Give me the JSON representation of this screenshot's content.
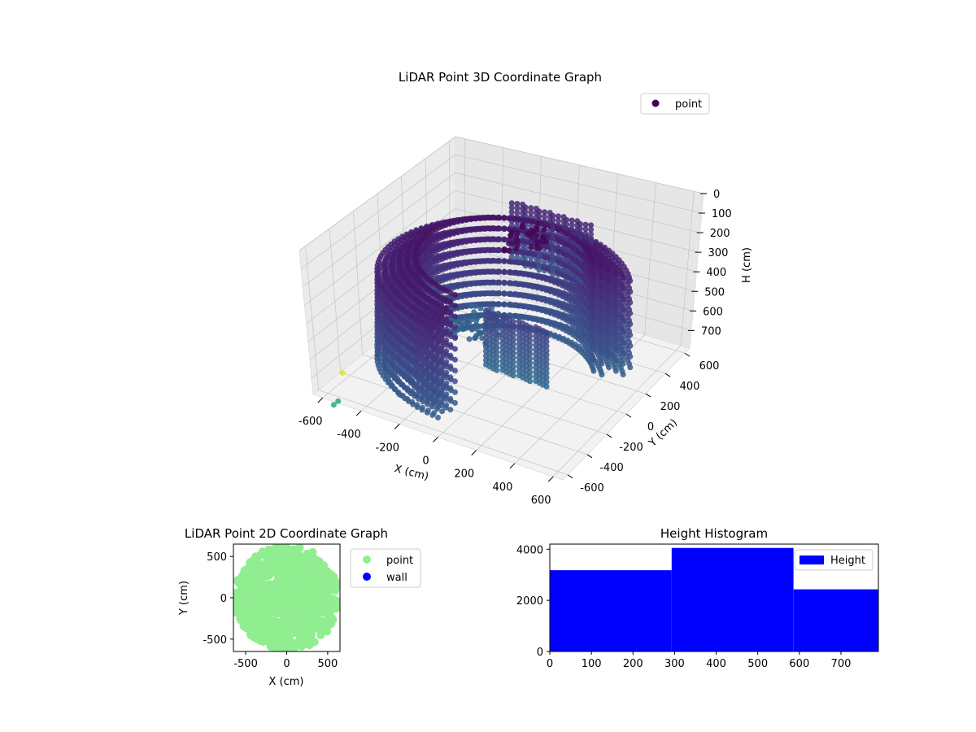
{
  "chart_data": [
    {
      "type": "scatter",
      "projection": "3d",
      "title": "LiDAR Point 3D Coordinate Graph",
      "xlabel": "X (cm)",
      "ylabel": "Y (cm)",
      "zlabel": "H (cm)",
      "xlim": [
        -650,
        650
      ],
      "ylim": [
        -650,
        650
      ],
      "zlim": [
        790,
        0
      ],
      "z_inverted": true,
      "xticks": [
        -600,
        -400,
        -200,
        0,
        200,
        400,
        600
      ],
      "yticks": [
        -600,
        -400,
        -200,
        0,
        200,
        400,
        600
      ],
      "zticks": [
        0,
        100,
        200,
        300,
        400,
        500,
        600,
        700
      ],
      "colormap": "viridis",
      "legend": {
        "placement": "upper-right",
        "entries": [
          {
            "name": "point",
            "color": "#440154"
          }
        ]
      },
      "grid": true,
      "series": [
        {
          "name": "point",
          "points": []
        }
      ]
    },
    {
      "type": "scatter",
      "title": "LiDAR Point 2D Coordinate Graph",
      "xlabel": "X (cm)",
      "ylabel": "Y (cm)",
      "xlim": [
        -650,
        650
      ],
      "ylim": [
        -650,
        650
      ],
      "xticks": [
        -500,
        0,
        500
      ],
      "yticks": [
        -500,
        0,
        500
      ],
      "grid": false,
      "legend": {
        "placement": "outside-right",
        "entries": [
          {
            "name": "point",
            "color": "#90ee90"
          },
          {
            "name": "wall",
            "color": "#0000ff"
          }
        ]
      },
      "series": [
        {
          "name": "point",
          "color": "#90ee90"
        },
        {
          "name": "wall",
          "color": "#0000ff"
        }
      ]
    },
    {
      "type": "bar",
      "title": "Height Histogram",
      "xlim": [
        0,
        790
      ],
      "ylim": [
        0,
        4200
      ],
      "xticks": [
        0,
        100,
        200,
        300,
        400,
        500,
        600,
        700
      ],
      "yticks": [
        0,
        2000,
        4000
      ],
      "legend": {
        "placement": "upper-right",
        "entries": [
          {
            "name": "Height",
            "color": "#0000ff"
          }
        ]
      },
      "bins": [
        {
          "start": 0,
          "end": 293,
          "count": 3180
        },
        {
          "start": 293,
          "end": 586,
          "count": 4050
        },
        {
          "start": 586,
          "end": 790,
          "count": 2430
        }
      ],
      "series": [
        {
          "name": "Height",
          "color": "#0000ff"
        }
      ]
    }
  ]
}
